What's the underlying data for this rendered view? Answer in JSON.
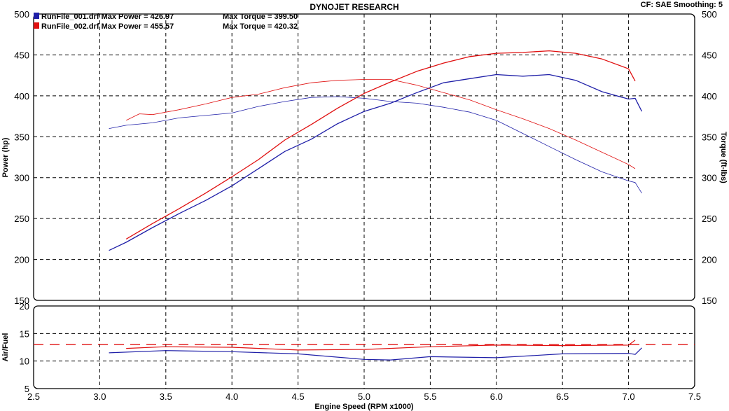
{
  "header": {
    "title": "DYNOJET RESEARCH",
    "settings": "CF: SAE  Smoothing: 5"
  },
  "legend": [
    {
      "label": "RunFile_001.drf Max Power = 426.97",
      "torque": "Max Torque = 399.50",
      "color": "#1f1fa8"
    },
    {
      "label": "RunFile_002.drf Max Power = 455.57",
      "torque": "Max Torque = 420.32",
      "color": "#e01010"
    }
  ],
  "chart_data": [
    {
      "type": "line",
      "title": "DYNOJET RESEARCH",
      "xlabel": "Engine Speed (RPM x1000)",
      "ylabel": "Power (hp)",
      "y2label": "Torque (ft-lbs)",
      "xlim": [
        2.5,
        7.5
      ],
      "ylim": [
        150,
        500
      ],
      "y2lim": [
        150,
        500
      ],
      "xticks": [
        "2.5",
        "3.0",
        "3.5",
        "4.0",
        "4.5",
        "5.0",
        "5.5",
        "6.0",
        "6.5",
        "7.0",
        "7.5"
      ],
      "yticks": [
        "150",
        "200",
        "250",
        "300",
        "350",
        "400",
        "450",
        "500"
      ],
      "grid": true,
      "series": [
        {
          "name": "RunFile_001.drf",
          "kind": "power",
          "color": "#1f1fa8",
          "x": [
            3.07,
            3.2,
            3.4,
            3.6,
            3.8,
            4.0,
            4.2,
            4.4,
            4.6,
            4.8,
            5.0,
            5.2,
            5.4,
            5.6,
            5.8,
            6.0,
            6.2,
            6.4,
            6.6,
            6.8,
            7.0,
            7.05,
            7.1
          ],
          "y": [
            211,
            221,
            239,
            256,
            272,
            290,
            311,
            332,
            347,
            366,
            381,
            391,
            404,
            416,
            421,
            426,
            424,
            426,
            419,
            405,
            396,
            397,
            381
          ]
        },
        {
          "name": "RunFile_001.drf",
          "kind": "torque",
          "color": "#1f1fa8",
          "x": [
            3.07,
            3.2,
            3.4,
            3.6,
            3.8,
            4.0,
            4.2,
            4.4,
            4.6,
            4.8,
            5.0,
            5.2,
            5.4,
            5.6,
            5.8,
            6.0,
            6.2,
            6.4,
            6.6,
            6.8,
            7.0,
            7.05,
            7.1
          ],
          "y": [
            360,
            364,
            367,
            373,
            376,
            379,
            387,
            393,
            398,
            399,
            397,
            393,
            391,
            386,
            380,
            370,
            354,
            338,
            322,
            307,
            296,
            294,
            281
          ]
        },
        {
          "name": "RunFile_002.drf",
          "kind": "power",
          "color": "#e01010",
          "x": [
            3.2,
            3.4,
            3.6,
            3.8,
            4.0,
            4.2,
            4.4,
            4.6,
            4.8,
            5.0,
            5.2,
            5.4,
            5.6,
            5.8,
            6.0,
            6.2,
            6.4,
            6.6,
            6.8,
            7.0,
            7.05
          ],
          "y": [
            225,
            244,
            262,
            281,
            301,
            322,
            346,
            365,
            385,
            403,
            417,
            430,
            440,
            448,
            452,
            453,
            455,
            452,
            445,
            433,
            418
          ]
        },
        {
          "name": "RunFile_002.drf",
          "kind": "torque",
          "color": "#e01010",
          "x": [
            3.2,
            3.3,
            3.4,
            3.6,
            3.8,
            4.0,
            4.2,
            4.4,
            4.6,
            4.8,
            5.0,
            5.2,
            5.4,
            5.6,
            5.8,
            6.0,
            6.2,
            6.4,
            6.6,
            6.8,
            7.0,
            7.05
          ],
          "y": [
            370,
            378,
            377,
            383,
            390,
            398,
            402,
            410,
            416,
            419,
            420,
            420,
            413,
            404,
            395,
            383,
            372,
            360,
            346,
            331,
            316,
            311
          ]
        }
      ]
    },
    {
      "type": "line",
      "xlabel": "Engine Speed (RPM x1000)",
      "ylabel": "Air/Fuel",
      "xlim": [
        2.5,
        7.5
      ],
      "ylim": [
        5,
        20
      ],
      "yticks": [
        "5",
        "10",
        "15",
        "20"
      ],
      "grid": true,
      "reference_line": {
        "y": 13,
        "style": "dashed",
        "color": "#e01010"
      },
      "series": [
        {
          "name": "RunFile_001.drf",
          "color": "#1f1fa8",
          "x": [
            3.07,
            3.5,
            4.0,
            4.5,
            5.0,
            5.2,
            5.5,
            6.0,
            6.5,
            7.0,
            7.05,
            7.1
          ],
          "y": [
            11.5,
            11.9,
            11.7,
            11.3,
            10.3,
            10.2,
            10.8,
            10.6,
            11.3,
            11.4,
            11.2,
            12.4
          ]
        },
        {
          "name": "RunFile_002.drf",
          "color": "#e01010",
          "x": [
            3.2,
            3.5,
            4.0,
            4.5,
            5.0,
            5.5,
            6.0,
            6.5,
            7.0,
            7.05
          ],
          "y": [
            12.3,
            12.6,
            12.5,
            12.0,
            12.1,
            12.6,
            12.9,
            12.8,
            12.9,
            13.8
          ]
        }
      ]
    }
  ]
}
